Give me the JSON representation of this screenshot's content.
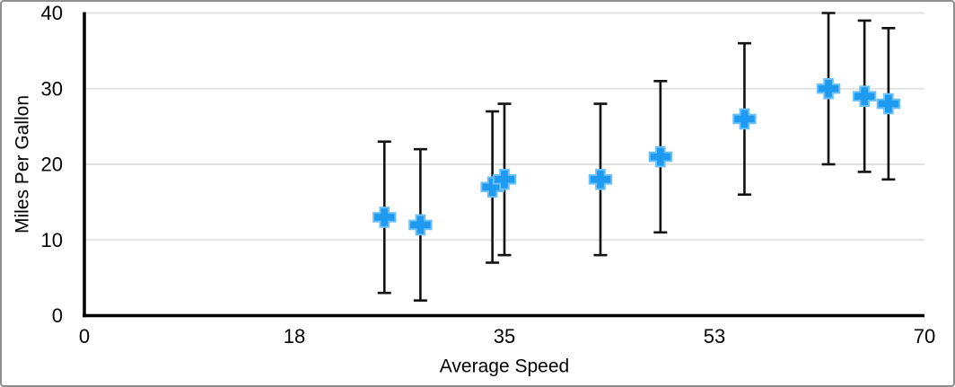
{
  "chart_data": {
    "type": "scatter",
    "title": "",
    "xlabel": "Average Speed",
    "ylabel": "Miles Per Gallon",
    "xlim": [
      0,
      70
    ],
    "ylim": [
      0,
      40
    ],
    "grid": "horizontal",
    "legend": "none",
    "x_ticks": [
      {
        "value": 0,
        "label": "0"
      },
      {
        "value": 17.5,
        "label": "18"
      },
      {
        "value": 35,
        "label": "35"
      },
      {
        "value": 52.5,
        "label": "53"
      },
      {
        "value": 70,
        "label": "70"
      }
    ],
    "y_ticks": [
      {
        "value": 0,
        "label": "0"
      },
      {
        "value": 10,
        "label": "10"
      },
      {
        "value": 20,
        "label": "20"
      },
      {
        "value": 30,
        "label": "30"
      },
      {
        "value": 40,
        "label": "40"
      }
    ],
    "error_bars": {
      "type": "fixed",
      "value": 10,
      "direction": "both"
    },
    "series": [
      {
        "name": "Miles Per Gallon",
        "marker": "plus",
        "points": [
          {
            "x": 25,
            "y": 13
          },
          {
            "x": 28,
            "y": 12
          },
          {
            "x": 34,
            "y": 17
          },
          {
            "x": 35,
            "y": 18
          },
          {
            "x": 43,
            "y": 18
          },
          {
            "x": 48,
            "y": 21
          },
          {
            "x": 55,
            "y": 26
          },
          {
            "x": 62,
            "y": 30
          },
          {
            "x": 65,
            "y": 29
          },
          {
            "x": 67,
            "y": 28
          }
        ]
      }
    ]
  },
  "colors": {
    "marker_fill": "#1e9bf0",
    "marker_stroke": "#6cc0f8",
    "error_bar": "#111111",
    "axis": "#000000",
    "gridline": "#e2e2e2",
    "text": "#000000",
    "background": "#ffffff",
    "frame_border": "#8e8e8e"
  }
}
